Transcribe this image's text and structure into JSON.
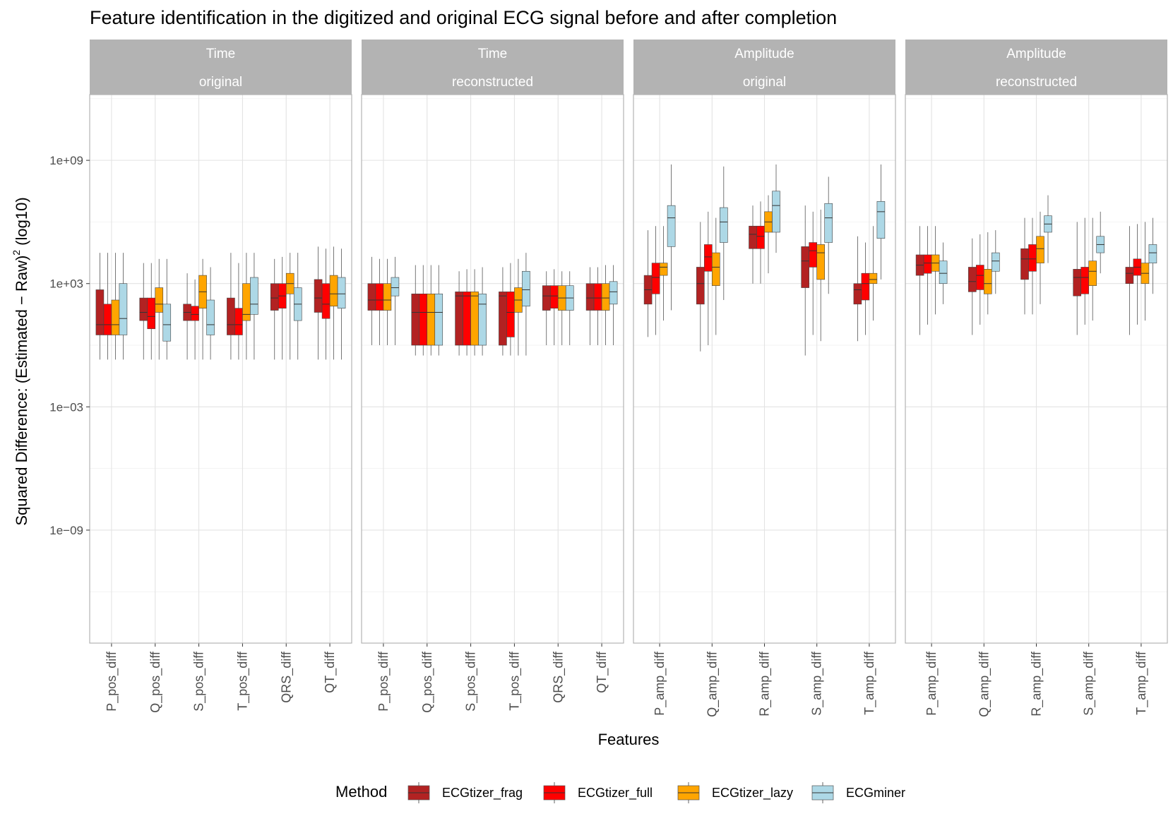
{
  "chart_data": {
    "type": "boxplot",
    "title": "Feature identification in the digitized and original ECG signal before and after completion",
    "xlabel": "Features",
    "ylabel_main": "Squared Difference: (Estimated − Raw)",
    "ylabel_sup": "2",
    "ylabel_suffix": " (log10)",
    "y_scale": "log10",
    "y_ticks": [
      {
        "value": 1000000000.0,
        "label": "1e+09"
      },
      {
        "value": 1000.0,
        "label": "1e+03"
      },
      {
        "value": 0.001,
        "label": "1e−03"
      },
      {
        "value": 1e-09,
        "label": "1e−09"
      }
    ],
    "ylim_log10": [
      -14.5,
      12.2
    ],
    "grid": true,
    "legend": {
      "title": "Method",
      "position": "bottom",
      "entries": [
        {
          "name": "ECGtizer_frag",
          "color": "#b22222"
        },
        {
          "name": "ECGtizer_full",
          "color": "#ff0000"
        },
        {
          "name": "ECGtizer_lazy",
          "color": "#ffa500"
        },
        {
          "name": "ECGminer",
          "color": "#add8e6"
        }
      ]
    },
    "note": "box values are log10(squared difference): [whisker_low, q1, median, q3, whisker_high]",
    "panels": [
      {
        "strip_top": "Time",
        "strip_bottom": "original",
        "features": [
          {
            "name": "P_pos_diff",
            "boxes": [
              [
                -0.7,
                0.5,
                1.0,
                2.7,
                4.5
              ],
              [
                -0.7,
                0.5,
                1.0,
                2.0,
                4.5
              ],
              [
                -0.7,
                0.5,
                1.0,
                2.2,
                4.5
              ],
              [
                -0.7,
                0.5,
                1.3,
                3.0,
                4.5
              ]
            ]
          },
          {
            "name": "Q_pos_diff",
            "boxes": [
              [
                -0.7,
                1.2,
                1.6,
                2.3,
                4.0
              ],
              [
                -0.7,
                0.8,
                1.4,
                2.3,
                4.0
              ],
              [
                -0.7,
                1.6,
                2.0,
                2.8,
                4.2
              ],
              [
                -0.7,
                0.2,
                1.0,
                2.0,
                4.2
              ]
            ]
          },
          {
            "name": "S_pos_diff",
            "boxes": [
              [
                -0.7,
                1.2,
                1.6,
                2.0,
                3.5
              ],
              [
                -0.7,
                1.2,
                1.5,
                1.9,
                3.2
              ],
              [
                -0.7,
                1.8,
                2.6,
                3.4,
                4.2
              ],
              [
                -0.7,
                0.5,
                1.0,
                2.2,
                3.8
              ]
            ]
          },
          {
            "name": "T_pos_diff",
            "boxes": [
              [
                -0.7,
                0.5,
                1.0,
                2.3,
                4.5
              ],
              [
                -0.7,
                0.5,
                1.0,
                1.8,
                4.0
              ],
              [
                -0.7,
                1.2,
                1.5,
                3.0,
                4.5
              ],
              [
                -0.7,
                1.5,
                2.0,
                3.3,
                4.5
              ]
            ]
          },
          {
            "name": "QRS_diff",
            "boxes": [
              [
                -0.7,
                1.7,
                2.3,
                3.0,
                4.2
              ],
              [
                -0.7,
                1.8,
                2.4,
                3.0,
                4.3
              ],
              [
                -0.7,
                2.5,
                3.0,
                3.5,
                4.5
              ],
              [
                -0.7,
                1.2,
                2.0,
                2.8,
                4.5
              ]
            ]
          },
          {
            "name": "QT_diff",
            "boxes": [
              [
                -0.7,
                1.6,
                2.3,
                3.2,
                4.8
              ],
              [
                -0.7,
                1.3,
                2.0,
                3.0,
                4.7
              ],
              [
                -0.7,
                1.9,
                2.5,
                3.4,
                4.8
              ],
              [
                -0.7,
                1.8,
                2.5,
                3.3,
                4.7
              ]
            ]
          }
        ]
      },
      {
        "strip_top": "Time",
        "strip_bottom": "reconstructed",
        "features": [
          {
            "name": "P_pos_diff",
            "boxes": [
              [
                0.0,
                1.7,
                2.2,
                3.0,
                4.3
              ],
              [
                0.0,
                1.7,
                2.2,
                3.0,
                4.2
              ],
              [
                0.0,
                1.7,
                2.2,
                3.0,
                4.2
              ],
              [
                0.0,
                2.4,
                2.8,
                3.3,
                4.3
              ]
            ]
          },
          {
            "name": "Q_pos_diff",
            "boxes": [
              [
                -0.5,
                0.0,
                1.6,
                2.5,
                3.9
              ],
              [
                -0.5,
                0.0,
                1.6,
                2.5,
                3.9
              ],
              [
                -0.5,
                0.0,
                1.6,
                2.5,
                3.9
              ],
              [
                -0.5,
                0.0,
                1.6,
                2.5,
                3.9
              ]
            ]
          },
          {
            "name": "S_pos_diff",
            "boxes": [
              [
                -0.5,
                0.0,
                2.4,
                2.6,
                3.6
              ],
              [
                -0.5,
                0.0,
                2.4,
                2.6,
                3.7
              ],
              [
                -0.5,
                0.0,
                2.4,
                2.6,
                3.7
              ],
              [
                -0.5,
                0.0,
                2.0,
                2.5,
                3.8
              ]
            ]
          },
          {
            "name": "T_pos_diff",
            "boxes": [
              [
                -0.5,
                0.0,
                2.4,
                2.6,
                3.8
              ],
              [
                -0.5,
                0.4,
                1.6,
                2.6,
                4.0
              ],
              [
                -0.5,
                1.6,
                2.2,
                2.8,
                4.2
              ],
              [
                -0.5,
                1.9,
                2.7,
                3.6,
                4.5
              ]
            ]
          },
          {
            "name": "QRS_diff",
            "boxes": [
              [
                0.0,
                1.7,
                2.4,
                2.9,
                3.6
              ],
              [
                0.0,
                1.8,
                2.4,
                2.9,
                3.7
              ],
              [
                0.0,
                1.7,
                2.3,
                2.9,
                3.6
              ],
              [
                0.0,
                1.7,
                2.3,
                2.9,
                3.6
              ]
            ]
          },
          {
            "name": "QT_diff",
            "boxes": [
              [
                0.0,
                1.7,
                2.3,
                3.0,
                3.8
              ],
              [
                0.0,
                1.7,
                2.3,
                3.0,
                3.8
              ],
              [
                0.0,
                1.7,
                2.3,
                3.0,
                3.9
              ],
              [
                0.0,
                2.0,
                2.6,
                3.1,
                3.9
              ]
            ]
          }
        ]
      },
      {
        "strip_top": "Amplitude",
        "strip_bottom": "original",
        "features": [
          {
            "name": "P_amp_diff",
            "boxes": [
              [
                0.4,
                2.0,
                2.7,
                3.4,
                5.6
              ],
              [
                0.5,
                2.5,
                3.3,
                4.0,
                5.8
              ],
              [
                1.2,
                3.4,
                3.8,
                4.0,
                5.8
              ],
              [
                1.7,
                4.8,
                6.2,
                6.8,
                8.8
              ]
            ]
          },
          {
            "name": "Q_amp_diff",
            "boxes": [
              [
                -0.3,
                2.0,
                3.0,
                3.8,
                6.0
              ],
              [
                0.0,
                3.6,
                4.3,
                4.9,
                6.5
              ],
              [
                0.5,
                2.9,
                3.8,
                4.5,
                6.2
              ],
              [
                2.2,
                5.0,
                6.0,
                6.7,
                8.7
              ]
            ]
          },
          {
            "name": "R_amp_diff",
            "boxes": [
              [
                3.0,
                4.7,
                5.4,
                5.8,
                6.8
              ],
              [
                3.0,
                4.7,
                5.3,
                5.8,
                7.0
              ],
              [
                3.5,
                5.5,
                6.0,
                6.5,
                7.3
              ],
              [
                4.5,
                5.5,
                6.8,
                7.5,
                8.8
              ]
            ]
          },
          {
            "name": "S_amp_diff",
            "boxes": [
              [
                -0.5,
                2.8,
                4.1,
                4.8,
                6.8
              ],
              [
                0.5,
                3.8,
                4.6,
                5.0,
                6.5
              ],
              [
                0.2,
                3.2,
                4.5,
                4.9,
                6.6
              ],
              [
                2.5,
                5.0,
                6.2,
                6.9,
                8.2
              ]
            ]
          },
          {
            "name": "T_amp_diff",
            "boxes": [
              [
                0.2,
                2.0,
                2.7,
                3.0,
                5.3
              ],
              [
                0.5,
                2.2,
                3.0,
                3.5,
                5.0
              ],
              [
                1.2,
                3.0,
                3.2,
                3.5,
                5.8
              ],
              [
                3.2,
                5.2,
                6.5,
                7.0,
                8.8
              ]
            ]
          }
        ]
      },
      {
        "strip_top": "Amplitude",
        "strip_bottom": "reconstructed",
        "features": [
          {
            "name": "P_amp_diff",
            "boxes": [
              [
                0.5,
                3.4,
                3.9,
                4.4,
                5.8
              ],
              [
                1.0,
                3.5,
                4.0,
                4.4,
                5.8
              ],
              [
                1.5,
                3.6,
                4.0,
                4.4,
                5.8
              ],
              [
                2.0,
                3.0,
                3.5,
                4.1,
                5.0
              ]
            ]
          },
          {
            "name": "Q_amp_diff",
            "boxes": [
              [
                0.5,
                2.6,
                3.1,
                3.8,
                5.2
              ],
              [
                1.0,
                2.7,
                3.4,
                3.9,
                5.4
              ],
              [
                1.5,
                2.5,
                3.0,
                3.7,
                5.5
              ],
              [
                2.5,
                3.6,
                4.1,
                4.5,
                5.6
              ]
            ]
          },
          {
            "name": "R_amp_diff",
            "boxes": [
              [
                1.5,
                3.2,
                4.2,
                4.7,
                6.2
              ],
              [
                1.5,
                3.6,
                4.2,
                4.9,
                6.2
              ],
              [
                2.0,
                4.0,
                4.7,
                5.3,
                6.5
              ],
              [
                4.0,
                5.5,
                5.9,
                6.3,
                7.3
              ]
            ]
          },
          {
            "name": "S_amp_diff",
            "boxes": [
              [
                0.5,
                2.4,
                3.3,
                3.7,
                6.0
              ],
              [
                1.0,
                2.5,
                3.3,
                3.8,
                6.2
              ],
              [
                1.2,
                2.9,
                3.6,
                4.1,
                6.2
              ],
              [
                3.5,
                4.5,
                4.9,
                5.3,
                6.5
              ]
            ]
          },
          {
            "name": "T_amp_diff",
            "boxes": [
              [
                0.5,
                3.0,
                3.5,
                3.8,
                5.8
              ],
              [
                1.0,
                3.4,
                3.8,
                4.2,
                5.9
              ],
              [
                1.2,
                3.0,
                3.5,
                4.0,
                6.0
              ],
              [
                2.5,
                4.0,
                4.5,
                4.9,
                6.2
              ]
            ]
          }
        ]
      }
    ]
  }
}
